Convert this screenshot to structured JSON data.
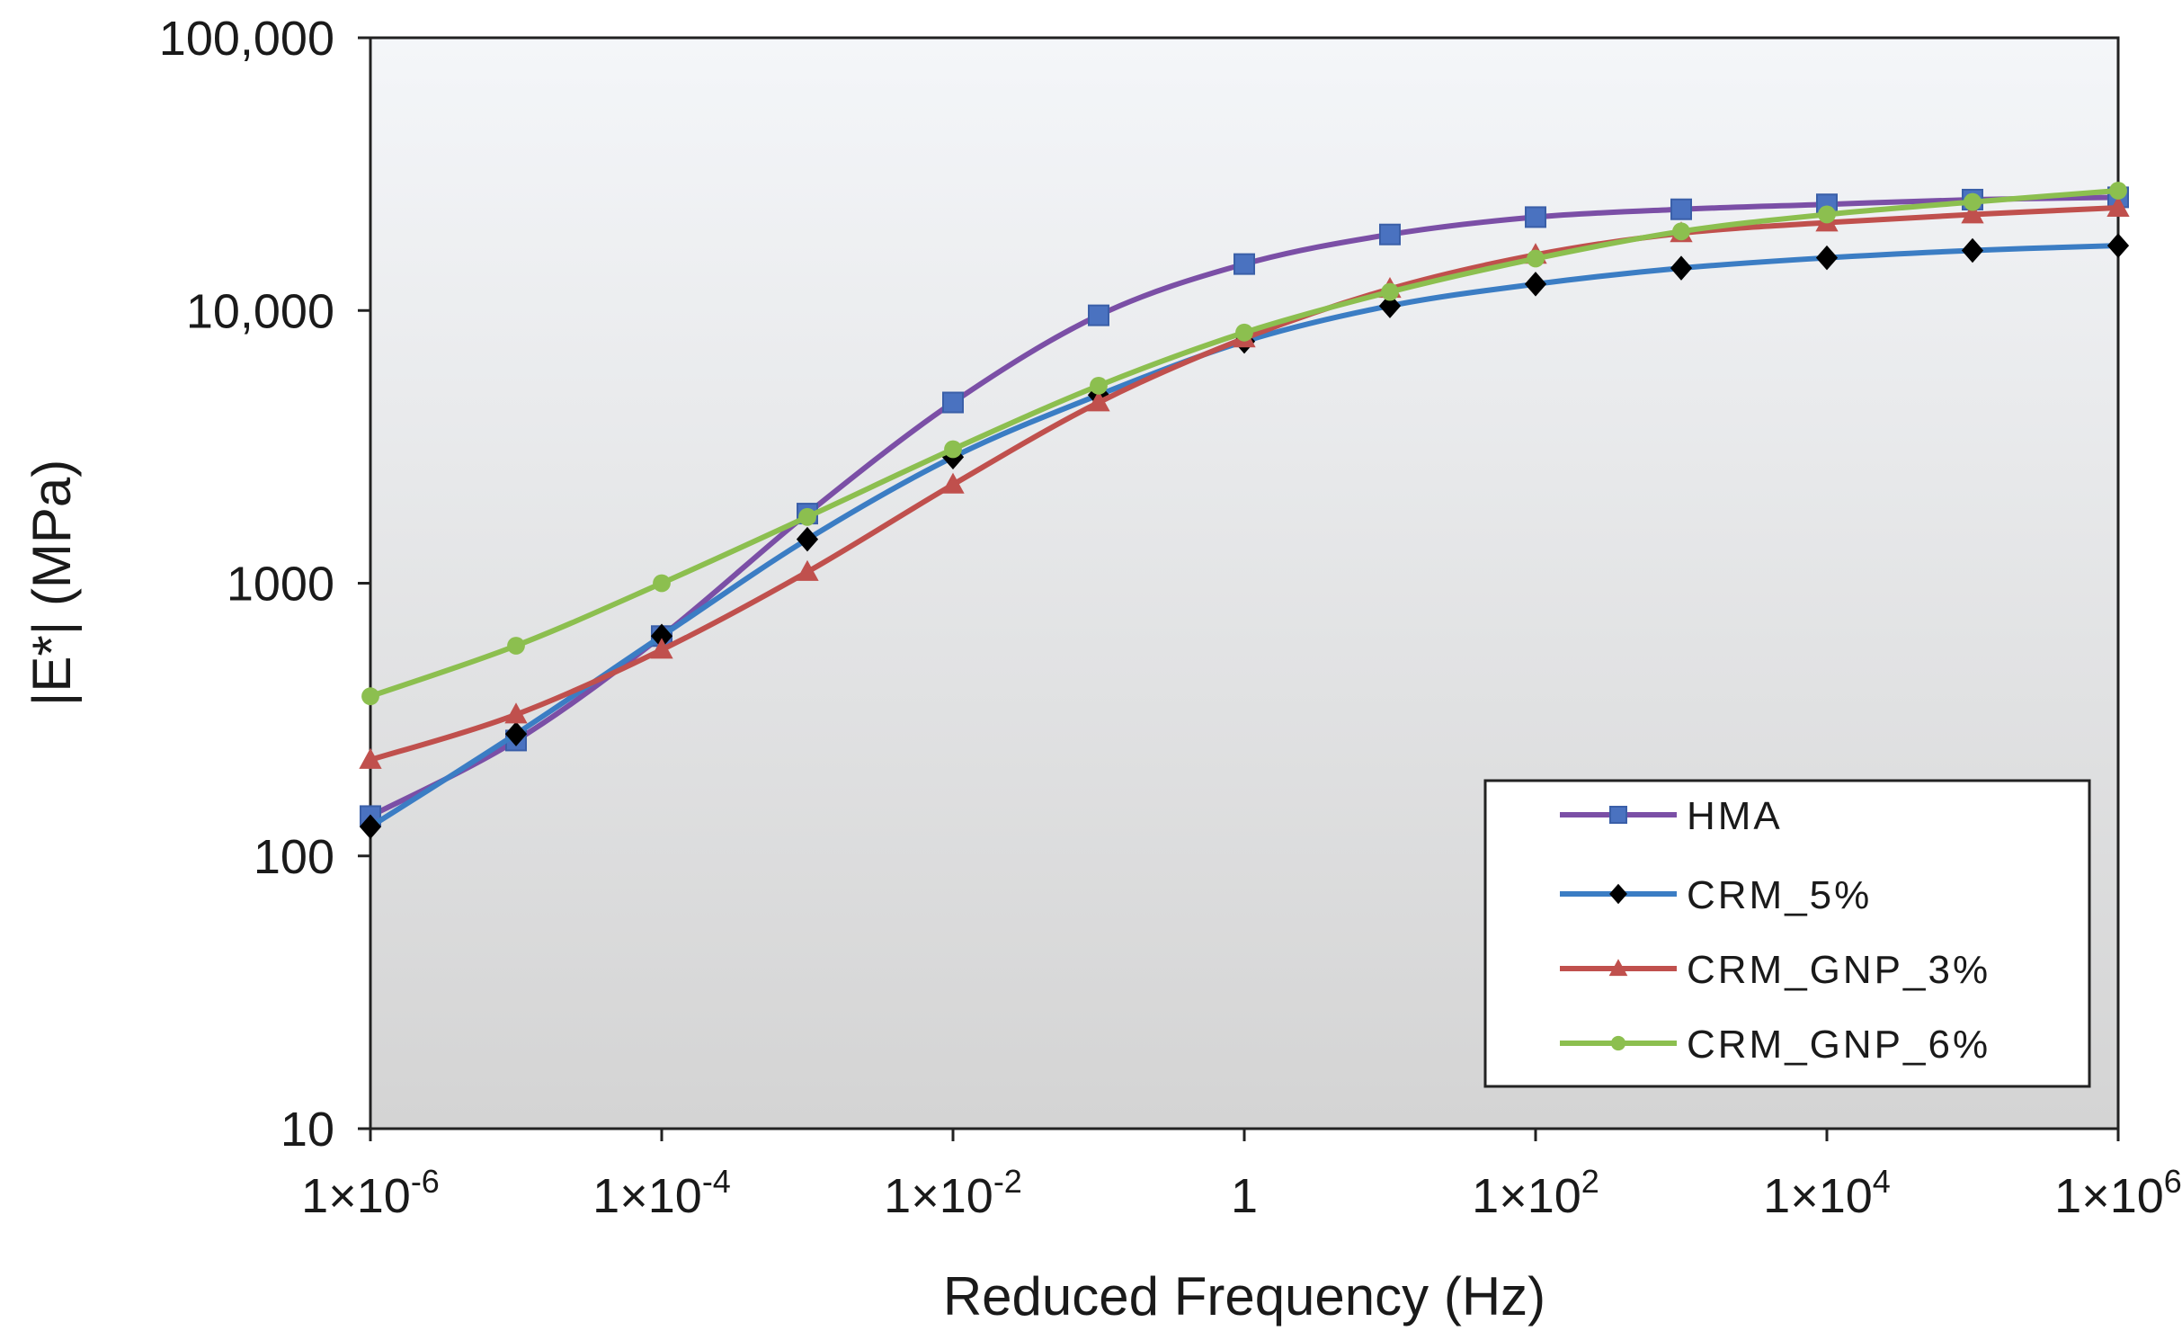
{
  "chart_data": {
    "type": "line",
    "title": "",
    "xlabel": "Reduced Frequency (Hz)",
    "ylabel": "|E*| (MPa)",
    "x_scale": "log",
    "y_scale": "log",
    "xlim": [
      1e-06,
      1000000
    ],
    "ylim": [
      10,
      100000
    ],
    "grid": false,
    "legend_position": "bottom-right",
    "x_ticks": [
      {
        "value": 1e-06,
        "base": "1×10",
        "exp": "-6"
      },
      {
        "value": 0.0001,
        "base": "1×10",
        "exp": "-4"
      },
      {
        "value": 0.01,
        "base": "1×10",
        "exp": "-2"
      },
      {
        "value": 1,
        "base": "1",
        "exp": ""
      },
      {
        "value": 100,
        "base": "1×10",
        "exp": "2"
      },
      {
        "value": 10000,
        "base": "1×10",
        "exp": "4"
      },
      {
        "value": 1000000,
        "base": "1×10",
        "exp": "6"
      }
    ],
    "y_ticks": [
      {
        "value": 10,
        "label": "10"
      },
      {
        "value": 100,
        "label": "100"
      },
      {
        "value": 1000,
        "label": "1000"
      },
      {
        "value": 10000,
        "label": "10,000"
      },
      {
        "value": 100000,
        "label": "100,000"
      }
    ],
    "x": [
      1e-06,
      1e-05,
      0.0001,
      0.001,
      0.01,
      0.1,
      1,
      10,
      100,
      1000,
      10000,
      100000,
      1000000
    ],
    "series": [
      {
        "name": "HMA",
        "color": "#7b4fa6",
        "marker": "square",
        "marker_color": "#4a72c0",
        "values": [
          140,
          265,
          640,
          1800,
          4600,
          9600,
          14800,
          19000,
          22000,
          23500,
          24500,
          25500,
          26000
        ]
      },
      {
        "name": "CRM_5%",
        "color": "#3b7dc4",
        "marker": "diamond",
        "marker_color": "#000000",
        "values": [
          128,
          280,
          640,
          1450,
          2900,
          4900,
          7700,
          10400,
          12500,
          14300,
          15600,
          16600,
          17300
        ]
      },
      {
        "name": "CRM_GNP_3%",
        "color": "#c0504d",
        "marker": "triangle",
        "marker_color": "#c0504d",
        "values": [
          225,
          330,
          570,
          1100,
          2300,
          4600,
          7900,
          12000,
          16000,
          19200,
          21000,
          22500,
          23800
        ]
      },
      {
        "name": "CRM_GNP_6%",
        "color": "#8cbf4f",
        "marker": "circle",
        "marker_color": "#8cbf4f",
        "values": [
          385,
          590,
          1000,
          1750,
          3100,
          5300,
          8300,
          11700,
          15500,
          19500,
          22500,
          25000,
          27500
        ]
      }
    ]
  }
}
